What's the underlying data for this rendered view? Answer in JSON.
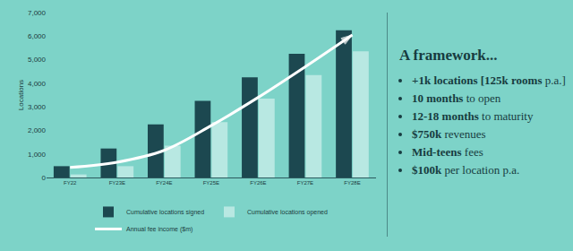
{
  "chart_data": {
    "type": "bar",
    "categories": [
      "FY22",
      "FY23E",
      "FY24E",
      "FY25E",
      "FY26E",
      "FY27E",
      "FY28E"
    ],
    "series": [
      {
        "name": "Cumulative locations signed",
        "type": "bar",
        "color": "#1c4850",
        "values": [
          480,
          1230,
          2250,
          3250,
          4250,
          5250,
          6250
        ]
      },
      {
        "name": "Cumulative locations opened",
        "type": "bar",
        "color": "#b8e8e2",
        "values": [
          130,
          480,
          1350,
          2350,
          3350,
          4350,
          5350
        ]
      },
      {
        "name": "Annual fee income ($m)",
        "type": "line",
        "color": "#ffffff",
        "marker": "arrow",
        "values": [
          430,
          650,
          1150,
          2200,
          3400,
          4700,
          6050
        ]
      }
    ],
    "y_label": "Locations",
    "ylim": [
      0,
      7000
    ],
    "yticks": [
      0,
      {
        "value": 1000,
        "label": "1,000"
      },
      {
        "value": 2000,
        "label": "2,000"
      },
      {
        "value": 3000,
        "label": "3,000"
      },
      {
        "value": 4000,
        "label": "4,000"
      },
      {
        "value": 5000,
        "label": "5,000"
      },
      {
        "value": 6000,
        "label": "6,000"
      },
      {
        "value": 7000,
        "label": "7,000"
      }
    ],
    "grid": false,
    "legend": "bottom"
  },
  "panel": {
    "title": "A framework...",
    "bullets": [
      {
        "bold": "+1k locations [125k rooms",
        "text": " p.a.]"
      },
      {
        "bold": "10 months",
        "text": " to open"
      },
      {
        "bold": "12-18 months",
        "text": " to maturity"
      },
      {
        "bold": "$750k",
        "text": " revenues"
      },
      {
        "bold": "Mid-teens",
        "text": " fees"
      },
      {
        "bold": "$100k",
        "text": " per location p.a."
      }
    ]
  }
}
